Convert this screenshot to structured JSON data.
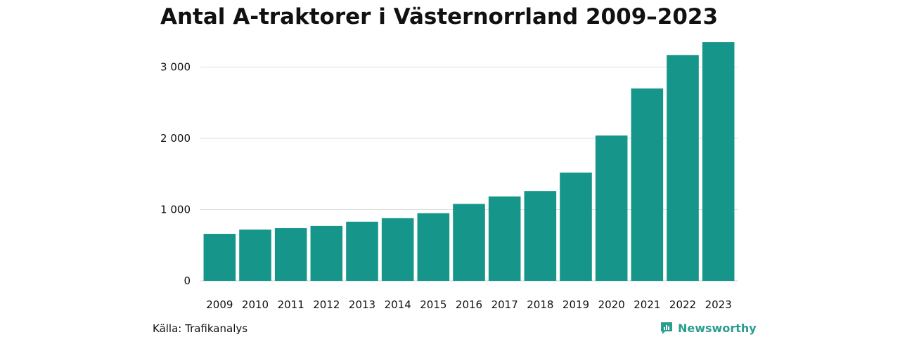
{
  "title": "Antal A-traktorer i Västernorrland 2009–2023",
  "source": "Källa: Trafikanalys",
  "brand": {
    "name": "Newsworthy",
    "icon": "newsworthy-logo-icon",
    "color": "#2a9d8f"
  },
  "chart_data": {
    "type": "bar",
    "title": "Antal A-traktorer i Västernorrland 2009–2023",
    "xlabel": "",
    "ylabel": "",
    "categories": [
      "2009",
      "2010",
      "2011",
      "2012",
      "2013",
      "2014",
      "2015",
      "2016",
      "2017",
      "2018",
      "2019",
      "2020",
      "2021",
      "2022",
      "2023"
    ],
    "values": [
      660,
      720,
      740,
      770,
      830,
      880,
      950,
      1080,
      1185,
      1260,
      1520,
      2040,
      2700,
      3170,
      3350
    ],
    "ylim": [
      0,
      3400
    ],
    "yticks": [
      0,
      1000,
      2000,
      3000
    ],
    "ytick_labels": [
      "0",
      "1 000",
      "2 000",
      "3 000"
    ],
    "bar_color": "#16968a",
    "grid": true
  }
}
